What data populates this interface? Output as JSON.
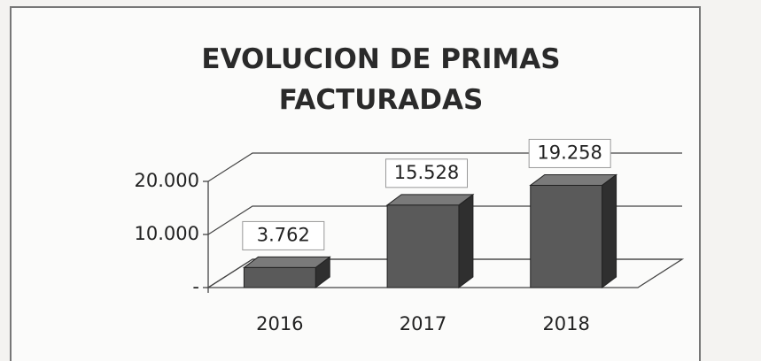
{
  "chart_data": {
    "type": "bar",
    "title": "EVOLUCION DE PRIMAS FACTURADAS",
    "categories": [
      "2016",
      "2017",
      "2018"
    ],
    "values": [
      3762,
      15528,
      19258
    ],
    "value_labels": [
      "3.762",
      "15.528",
      "19.258"
    ],
    "color": "#5a5a5a",
    "ylim": [
      0,
      20000
    ],
    "yticks": [
      {
        "value": 0,
        "label": "-"
      },
      {
        "value": 10000,
        "label": "10.000"
      },
      {
        "value": 20000,
        "label": "20.000"
      }
    ],
    "grid": true
  }
}
